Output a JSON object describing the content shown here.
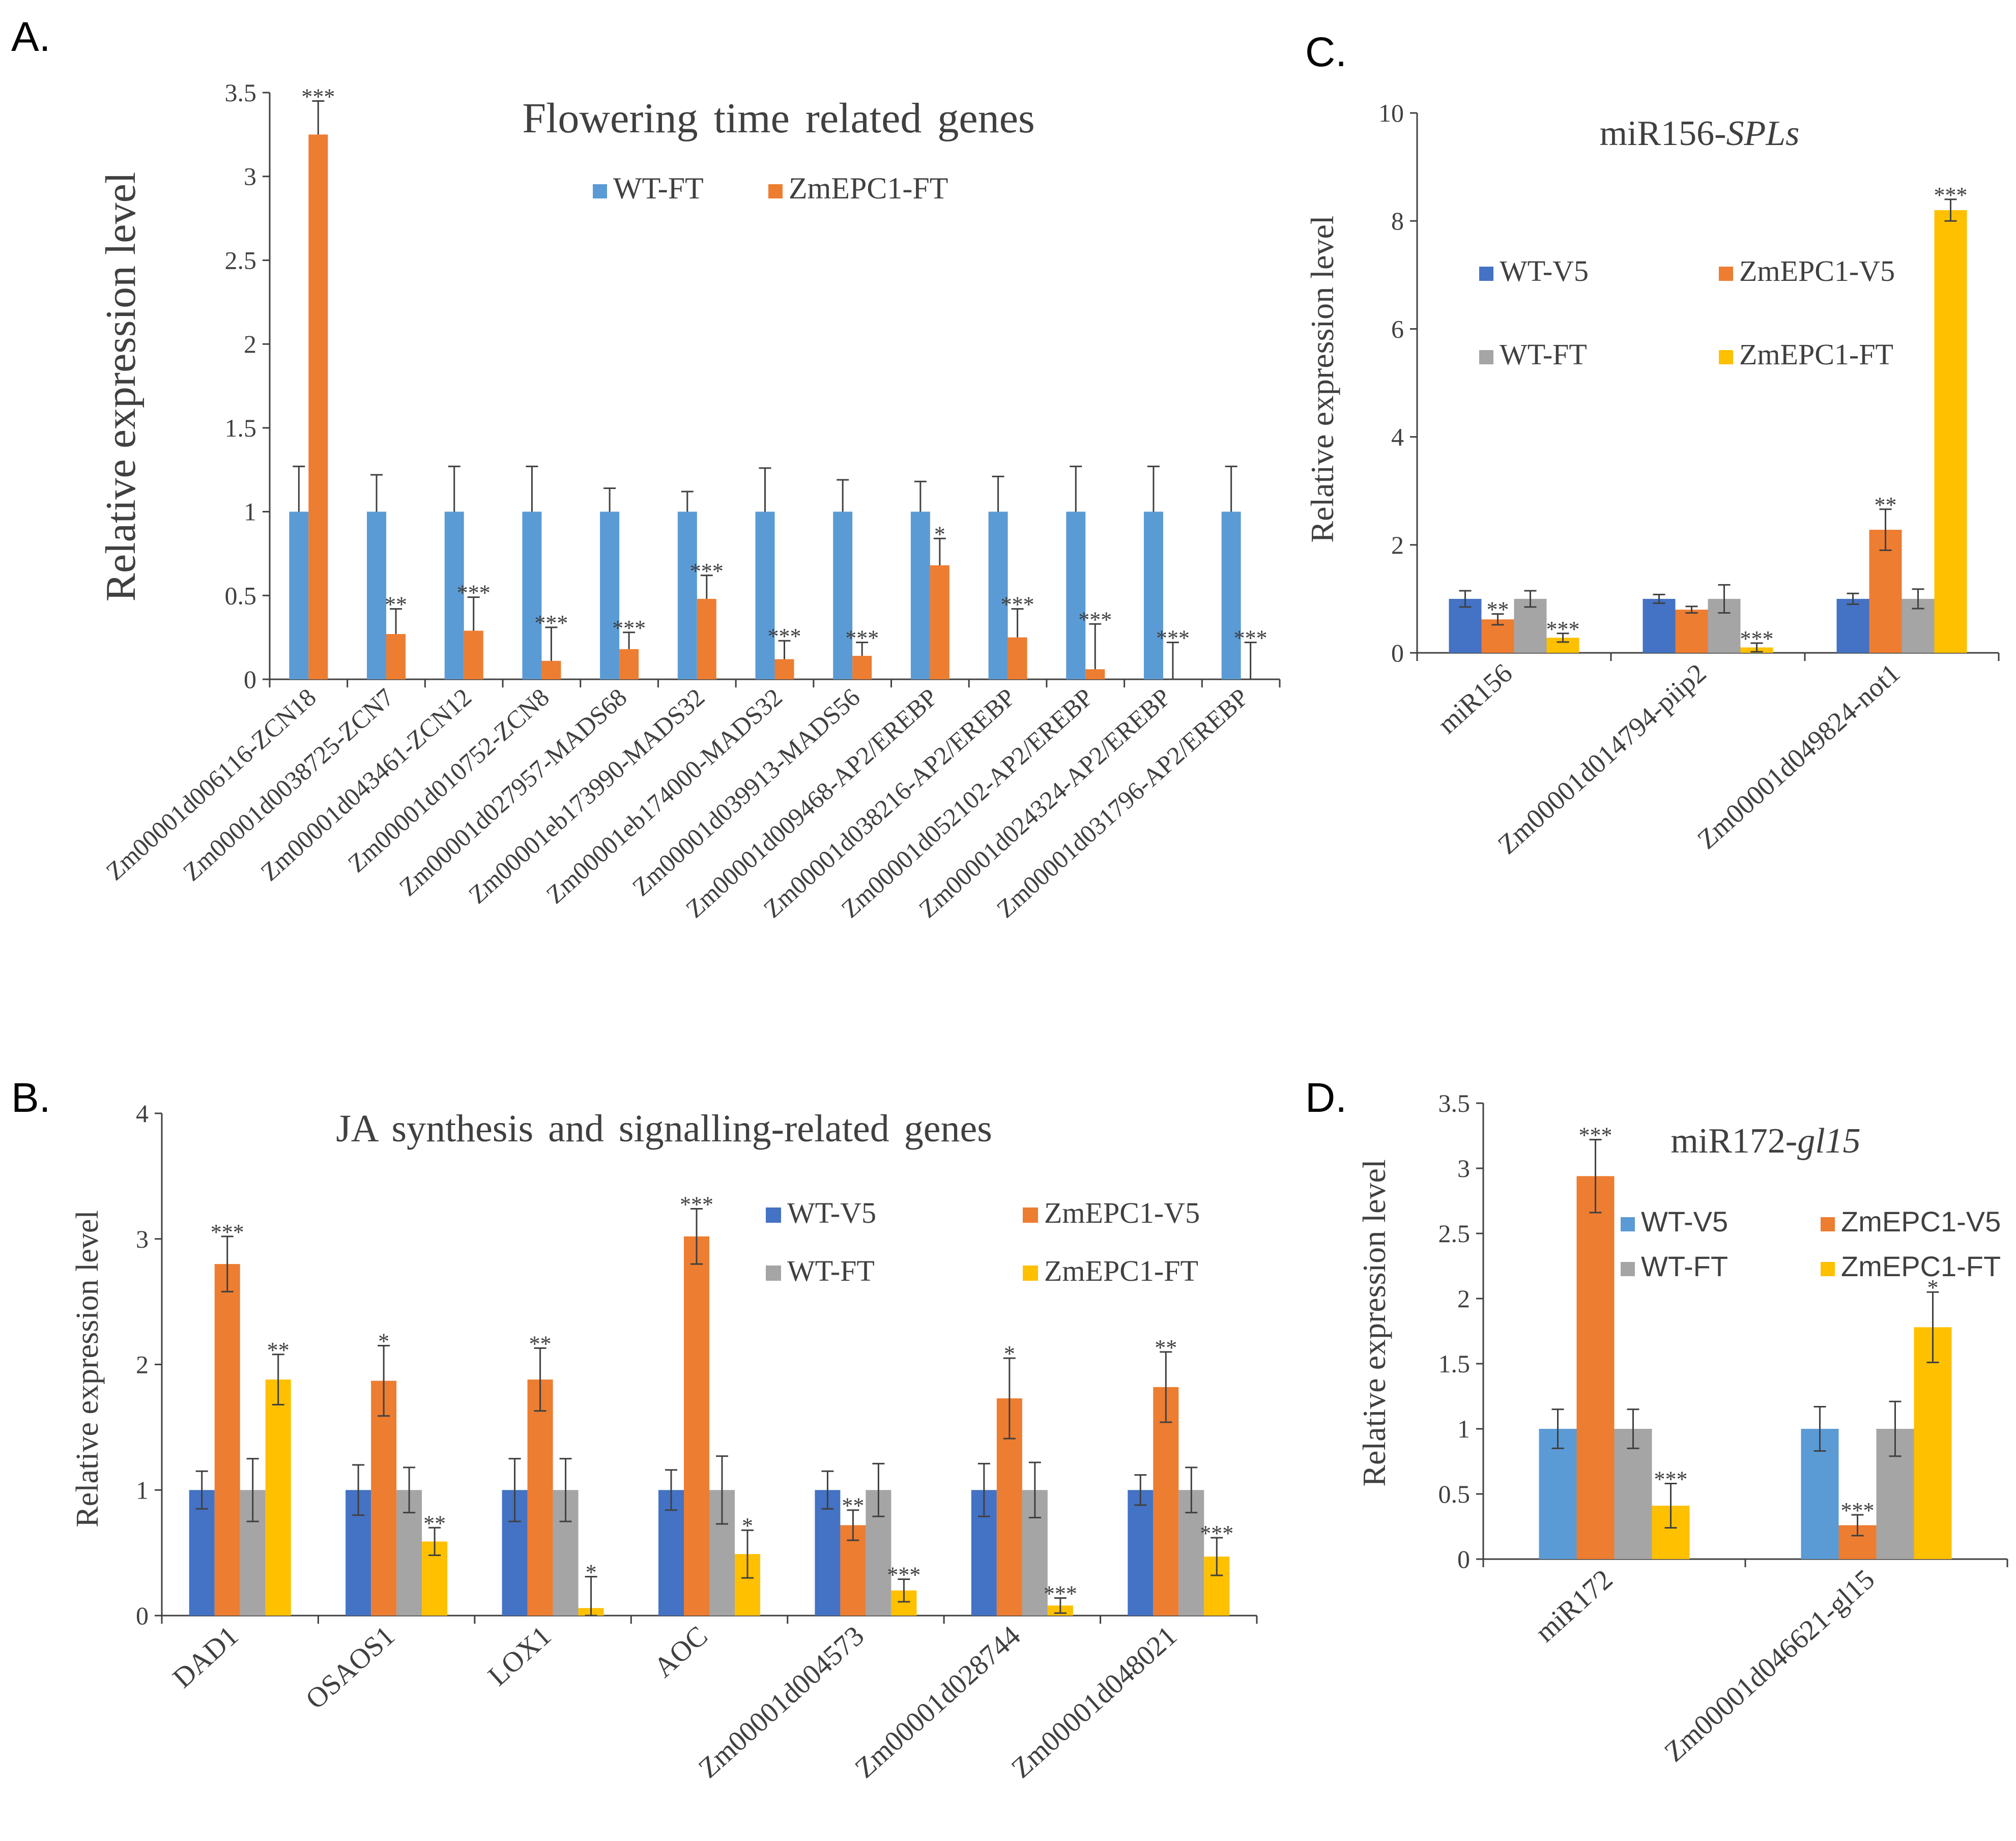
{
  "colors": {
    "wt_v5": "#4472c4",
    "zm_v5": "#ed7d31",
    "wt_ft": "#a5a5a5",
    "zm_ft": "#ffc000",
    "wt_ft_light": "#5b9bd5",
    "axis": "#404040",
    "err": "#404040"
  },
  "chart_data": [
    {
      "id": "A",
      "panel_label": "A.",
      "type": "bar",
      "title": "Flowering time related genes",
      "ylabel": "Relative expression level",
      "xlabel": "",
      "ylim": [
        0,
        3.5
      ],
      "yticks": [
        0,
        0.5,
        1,
        1.5,
        2,
        2.5,
        3,
        3.5
      ],
      "ytick_labels": [
        "0",
        "0.5",
        "1",
        "1.5",
        "2",
        "2.5",
        "3",
        "3.5"
      ],
      "legend_position": "top-center",
      "categories": [
        "Zm00001d006116-ZCN18",
        "Zm00001d0038725-ZCN7",
        "Zm00001d043461-ZCN12",
        "Zm00001d010752-ZCN8",
        "Zm00001d027957-MADS68",
        "Zm00001eb173990-MADS32",
        "Zm00001eb174000-MADS32",
        "Zm00001d039913-MADS56",
        "Zm00001d009468-AP2/EREBP",
        "Zm00001d038216-AP2/EREBP",
        "Zm00001d052102-AP2/EREBP",
        "Zm00001d024324-AP2/EREBP",
        "Zm00001d031796-AP2/EREBP"
      ],
      "series": [
        {
          "name": "WT-FT",
          "color_key": "wt_ft_light",
          "values": [
            1,
            1,
            1,
            1,
            1,
            1,
            1,
            1,
            1,
            1,
            1,
            1,
            1
          ],
          "errors": [
            0.27,
            0.22,
            0.27,
            0.27,
            0.14,
            0.12,
            0.26,
            0.19,
            0.18,
            0.21,
            0.27,
            0.27,
            0.27
          ],
          "sig": [
            "",
            "",
            "",
            "",
            "",
            "",
            "",
            "",
            "",
            "",
            "",
            "",
            ""
          ]
        },
        {
          "name": "ZmEPC1-FT",
          "color_key": "zm_v5",
          "values": [
            3.25,
            0.27,
            0.29,
            0.11,
            0.18,
            0.48,
            0.12,
            0.14,
            0.68,
            0.25,
            0.06,
            0.0,
            0.0
          ],
          "errors": [
            0.2,
            0.15,
            0.2,
            0.2,
            0.1,
            0.14,
            0.11,
            0.08,
            0.16,
            0.17,
            0.27,
            0.22,
            0.22
          ],
          "sig": [
            "***",
            "**",
            "***",
            "***",
            "***",
            "***",
            "***",
            "***",
            "*",
            "***",
            "***",
            "***",
            "***"
          ]
        }
      ]
    },
    {
      "id": "B",
      "panel_label": "B.",
      "type": "bar",
      "title": "JA synthesis and signalling-related genes",
      "ylabel": "Relative expression level",
      "xlabel": "",
      "ylim": [
        0,
        4
      ],
      "yticks": [
        0,
        1,
        2,
        3,
        4
      ],
      "ytick_labels": [
        "0",
        "1",
        "2",
        "3",
        "4"
      ],
      "legend_position": "top-right",
      "categories": [
        "DAD1",
        "OSAOS1",
        "LOX1",
        "AOC",
        "Zm00001d004573",
        "Zm00001d028744",
        "Zm00001d048021"
      ],
      "series": [
        {
          "name": "WT-V5",
          "color_key": "wt_v5",
          "values": [
            1,
            1,
            1,
            1,
            1,
            1,
            1
          ],
          "errors": [
            0.15,
            0.2,
            0.25,
            0.16,
            0.15,
            0.21,
            0.12
          ],
          "sig": [
            "",
            "",
            "",
            "",
            "",
            "",
            ""
          ]
        },
        {
          "name": "ZmEPC1-V5",
          "color_key": "zm_v5",
          "values": [
            2.8,
            1.87,
            1.88,
            3.02,
            0.72,
            1.73,
            1.82
          ],
          "errors": [
            0.22,
            0.28,
            0.25,
            0.22,
            0.12,
            0.32,
            0.28
          ],
          "sig": [
            "***",
            "*",
            "**",
            "***",
            "**",
            "*",
            "**"
          ]
        },
        {
          "name": "WT-FT",
          "color_key": "wt_ft",
          "values": [
            1,
            1,
            1,
            1,
            1,
            1,
            1
          ],
          "errors": [
            0.25,
            0.18,
            0.25,
            0.27,
            0.21,
            0.22,
            0.18
          ],
          "sig": [
            "",
            "",
            "",
            "",
            "",
            "",
            ""
          ]
        },
        {
          "name": "ZmEPC1-FT",
          "color_key": "zm_ft",
          "values": [
            1.88,
            0.59,
            0.06,
            0.49,
            0.2,
            0.08,
            0.47
          ],
          "errors": [
            0.2,
            0.11,
            0.25,
            0.19,
            0.09,
            0.06,
            0.15
          ],
          "sig": [
            "**",
            "**",
            "*",
            "*",
            "***",
            "***",
            "***"
          ]
        }
      ]
    },
    {
      "id": "C",
      "panel_label": "C.",
      "type": "bar",
      "title_main": "miR156-",
      "title_italic": "SPLs",
      "ylabel": "Relative expression level",
      "xlabel": "",
      "ylim": [
        0,
        10
      ],
      "yticks": [
        0,
        2,
        4,
        6,
        8,
        10
      ],
      "ytick_labels": [
        "0",
        "2",
        "4",
        "6",
        "8",
        "10"
      ],
      "legend_position": "middle-left",
      "categories": [
        "miR156",
        "Zm00001d014794-piip2",
        "Zm00001d049824-not1"
      ],
      "series": [
        {
          "name": "WT-V5",
          "color_key": "wt_v5",
          "values": [
            1,
            1,
            1
          ],
          "errors": [
            0.15,
            0.08,
            0.1
          ],
          "sig": [
            "",
            "",
            ""
          ]
        },
        {
          "name": "ZmEPC1-V5",
          "color_key": "zm_v5",
          "values": [
            0.62,
            0.8,
            2.28
          ],
          "errors": [
            0.1,
            0.06,
            0.38
          ],
          "sig": [
            "**",
            "",
            "**"
          ]
        },
        {
          "name": "WT-FT",
          "color_key": "wt_ft",
          "values": [
            1,
            1,
            1
          ],
          "errors": [
            0.15,
            0.26,
            0.18
          ],
          "sig": [
            "",
            "",
            ""
          ]
        },
        {
          "name": "ZmEPC1-FT",
          "color_key": "zm_ft",
          "values": [
            0.28,
            0.1,
            8.2
          ],
          "errors": [
            0.08,
            0.08,
            0.2
          ],
          "sig": [
            "***",
            "***",
            "***"
          ]
        }
      ]
    },
    {
      "id": "D",
      "panel_label": "D.",
      "type": "bar",
      "title_main": "miR172-",
      "title_italic": "gl15",
      "ylabel": "Relative expression level",
      "xlabel": "",
      "ylim": [
        0,
        3.5
      ],
      "yticks": [
        0,
        0.5,
        1,
        1.5,
        2,
        2.5,
        3,
        3.5
      ],
      "ytick_labels": [
        "0",
        "0.5",
        "1",
        "1.5",
        "2",
        "2.5",
        "3",
        "3.5"
      ],
      "legend_position": "top-center",
      "categories": [
        "miR172",
        "Zm00001d046621-gl15"
      ],
      "series": [
        {
          "name": "WT-V5",
          "color_key": "wt_ft_light",
          "values": [
            1,
            1
          ],
          "errors": [
            0.15,
            0.17
          ],
          "sig": [
            "",
            ""
          ]
        },
        {
          "name": "ZmEPC1-V5",
          "color_key": "zm_v5",
          "values": [
            2.94,
            0.26
          ],
          "errors": [
            0.28,
            0.08
          ],
          "sig": [
            "***",
            "***"
          ]
        },
        {
          "name": "WT-FT",
          "color_key": "wt_ft",
          "values": [
            1,
            1
          ],
          "errors": [
            0.15,
            0.21
          ],
          "sig": [
            "",
            ""
          ]
        },
        {
          "name": "ZmEPC1-FT",
          "color_key": "zm_ft",
          "values": [
            0.41,
            1.78
          ],
          "errors": [
            0.17,
            0.27
          ],
          "sig": [
            "***",
            "*"
          ]
        }
      ]
    }
  ]
}
